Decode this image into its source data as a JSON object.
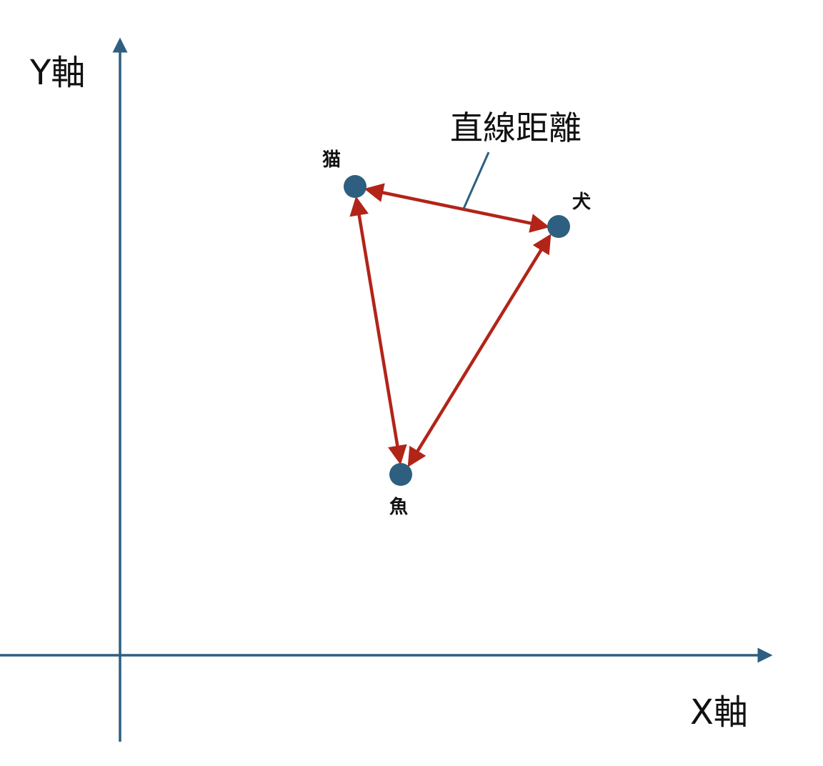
{
  "axes": {
    "y_label": "Y軸",
    "x_label": "X軸"
  },
  "nodes": {
    "cat": "猫",
    "dog": "犬",
    "fish": "魚"
  },
  "callout": {
    "label": "直線距離"
  },
  "colors": {
    "axis": "#2e5f80",
    "node": "#2e5f80",
    "distance_arrow": "#b22418"
  }
}
